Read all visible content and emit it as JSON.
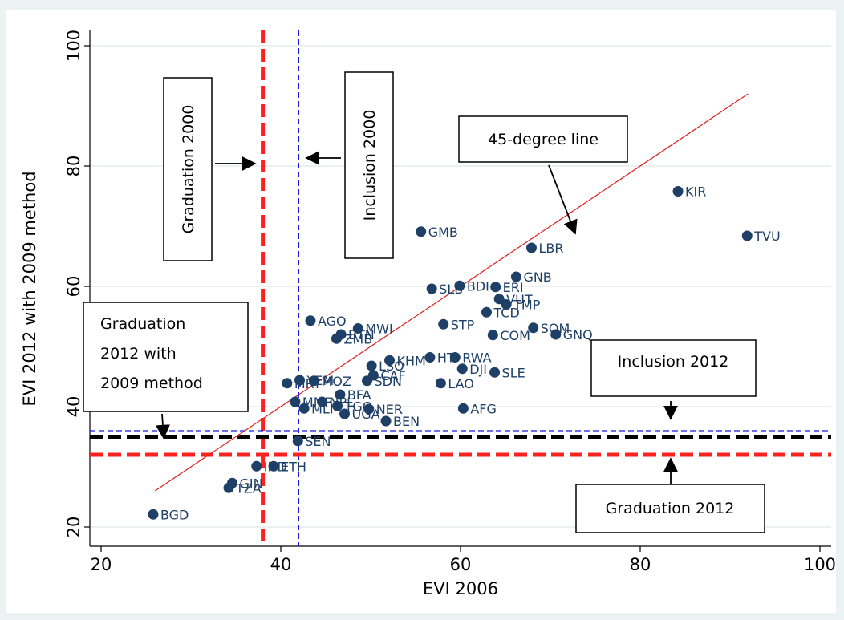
{
  "chart_data": {
    "type": "scatter",
    "title": "",
    "xlabel": "EVI 2006",
    "ylabel": "EVI 2012 with 2009 method",
    "xlim": [
      18.5,
      102
    ],
    "ylim": [
      18.5,
      102
    ],
    "xticks": [
      20,
      40,
      60,
      80,
      100
    ],
    "yticks": [
      20,
      40,
      60,
      80,
      100
    ],
    "tick_labels_x": [
      "20",
      "40",
      "60",
      "80",
      "100"
    ],
    "tick_labels_y": [
      "20",
      "40",
      "60",
      "80",
      "100"
    ],
    "grid": true,
    "marker_color": "#1e3f66",
    "points": [
      {
        "label": "BGD",
        "x": 25.8,
        "y": 22.1
      },
      {
        "label": "TZA",
        "x": 34.2,
        "y": 26.5
      },
      {
        "label": "GIN",
        "x": 34.6,
        "y": 27.3
      },
      {
        "label": "IND",
        "x": 37.3,
        "y": 30.1
      },
      {
        "label": "ETH",
        "x": 39.2,
        "y": 30.1
      },
      {
        "label": "SEN",
        "x": 41.9,
        "y": 34.3
      },
      {
        "label": "BEN",
        "x": 51.7,
        "y": 37.6
      },
      {
        "label": "UGA",
        "x": 47.1,
        "y": 38.8
      },
      {
        "label": "NER",
        "x": 49.8,
        "y": 39.6
      },
      {
        "label": "AFG",
        "x": 60.3,
        "y": 39.7
      },
      {
        "label": "MLI",
        "x": 42.6,
        "y": 39.7
      },
      {
        "label": "TGO",
        "x": 46.3,
        "y": 40.1
      },
      {
        "label": "NPL",
        "x": 44.6,
        "y": 40.8
      },
      {
        "label": "MMR",
        "x": 41.6,
        "y": 40.8
      },
      {
        "label": "BFA",
        "x": 46.6,
        "y": 42.0
      },
      {
        "label": "MOZ",
        "x": 43.7,
        "y": 44.3
      },
      {
        "label": "MRT",
        "x": 40.7,
        "y": 43.9
      },
      {
        "label": "YEM",
        "x": 42.1,
        "y": 44.4
      },
      {
        "label": "SDN",
        "x": 49.6,
        "y": 44.3
      },
      {
        "label": "LAO",
        "x": 57.8,
        "y": 43.9
      },
      {
        "label": "CAF",
        "x": 50.3,
        "y": 45.2
      },
      {
        "label": "SLE",
        "x": 63.8,
        "y": 45.7
      },
      {
        "label": "DJI",
        "x": 60.2,
        "y": 46.3
      },
      {
        "label": "LSO",
        "x": 50.1,
        "y": 46.8
      },
      {
        "label": "KHM",
        "x": 52.1,
        "y": 47.7
      },
      {
        "label": "HTI",
        "x": 56.6,
        "y": 48.2
      },
      {
        "label": "RWA",
        "x": 59.4,
        "y": 48.2
      },
      {
        "label": "ZMB",
        "x": 46.2,
        "y": 51.3
      },
      {
        "label": "BTN",
        "x": 46.7,
        "y": 52.0
      },
      {
        "label": "MWI",
        "x": 48.6,
        "y": 53.0
      },
      {
        "label": "AGO",
        "x": 43.3,
        "y": 54.3
      },
      {
        "label": "STP",
        "x": 58.1,
        "y": 53.7
      },
      {
        "label": "COM",
        "x": 63.6,
        "y": 51.9
      },
      {
        "label": "SOM",
        "x": 68.1,
        "y": 53.1
      },
      {
        "label": "GNQ",
        "x": 70.6,
        "y": 52.0
      },
      {
        "label": "TCD",
        "x": 62.9,
        "y": 55.7
      },
      {
        "label": "TMP",
        "x": 65.1,
        "y": 57.0
      },
      {
        "label": "VUT",
        "x": 64.3,
        "y": 57.9
      },
      {
        "label": "SLB",
        "x": 56.8,
        "y": 59.6
      },
      {
        "label": "BDI",
        "x": 59.9,
        "y": 60.1
      },
      {
        "label": "ERI",
        "x": 63.9,
        "y": 59.9
      },
      {
        "label": "GNB",
        "x": 66.2,
        "y": 61.6
      },
      {
        "label": "LBR",
        "x": 67.9,
        "y": 66.4
      },
      {
        "label": "GMB",
        "x": 55.6,
        "y": 69.1
      },
      {
        "label": "KIR",
        "x": 84.2,
        "y": 75.8
      },
      {
        "label": "TVU",
        "x": 91.9,
        "y": 68.4
      }
    ],
    "lines": {
      "forty_five": {
        "from": 26,
        "to": 92,
        "color": "#e02020"
      },
      "graduation_2000": {
        "x": 38,
        "color": "#ff2020"
      },
      "inclusion_2000": {
        "x": 42,
        "color": "#1a1ae0"
      },
      "inclusion_2012": {
        "y": 36,
        "color": "#1a1ae0"
      },
      "graduation_2012_2009": {
        "y": 35,
        "color": "#000000"
      },
      "graduation_2012": {
        "y": 32,
        "color": "#ff2020"
      }
    },
    "annotations": {
      "graduation_2000": "Graduation 2000",
      "inclusion_2000": "Inclusion 2000",
      "forty_five": "45-degree line",
      "graduation_2012_2009": [
        "Graduation",
        "2012 with",
        "2009 method"
      ],
      "inclusion_2012": "Inclusion 2012",
      "graduation_2012": "Graduation 2012"
    }
  }
}
